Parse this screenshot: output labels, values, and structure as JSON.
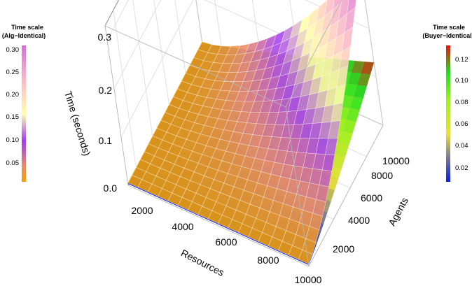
{
  "chart_data": {
    "type": "surface3d",
    "xlabel": "Resources",
    "ylabel": "Agents",
    "zlabel": "Time (seconds)",
    "x_ticks": [
      "2000",
      "4000",
      "6000",
      "8000",
      "10000"
    ],
    "y_ticks": [
      "2000",
      "4000",
      "6000",
      "8000",
      "10000"
    ],
    "z_ticks": [
      "0.0",
      "0.1",
      "0.2",
      "0.3"
    ],
    "xlim": [
      1000,
      10000
    ],
    "ylim": [
      1000,
      10000
    ],
    "zlim": [
      0,
      0.33
    ],
    "grid": true,
    "series": [
      {
        "name": "Alg-Identical",
        "colorbar": {
          "title_line1": "Time scale",
          "title_line2": "(Alg−Identical)",
          "ticks": [
            "0.30",
            "0.25",
            "0.20",
            "0.15",
            "0.10",
            "0.05"
          ],
          "range": [
            0.005,
            0.31
          ],
          "stops": [
            {
              "t": 0.0,
              "color": "#f5a300"
            },
            {
              "t": 0.12,
              "color": "#e98a6e"
            },
            {
              "t": 0.3,
              "color": "#a33cf2"
            },
            {
              "t": 0.5,
              "color": "#ffffa8"
            },
            {
              "t": 0.7,
              "color": "#ffc4c4"
            },
            {
              "t": 1.0,
              "color": "#d96fd9"
            }
          ]
        },
        "surface": {
          "x": [
            1000,
            2000,
            3000,
            4000,
            5000,
            6000,
            7000,
            8000,
            9000,
            10000
          ],
          "y": [
            1000,
            2000,
            3000,
            4000,
            5000,
            6000,
            7000,
            8000,
            9000,
            10000
          ],
          "z_max": 0.33,
          "x_exponent": 1.6,
          "y_exponent": 1.5,
          "base": 0.005
        }
      },
      {
        "name": "Buyer-Identical",
        "colorbar": {
          "title_line1": "Time scale",
          "title_line2": "(Buyer−Identical)",
          "ticks": [
            "0.12",
            "0.10",
            "0.08",
            "0.06",
            "0.04",
            "0.02"
          ],
          "range": [
            0.003,
            0.13
          ],
          "stops": [
            {
              "t": 0.0,
              "color": "#0a1fe0"
            },
            {
              "t": 0.18,
              "color": "#7a7a90"
            },
            {
              "t": 0.35,
              "color": "#e8e03a"
            },
            {
              "t": 0.6,
              "color": "#a0f020"
            },
            {
              "t": 0.8,
              "color": "#22e022"
            },
            {
              "t": 1.0,
              "color": "#e81010"
            }
          ]
        },
        "surface": {
          "x": [
            1000,
            2000,
            3000,
            4000,
            5000,
            6000,
            7000,
            8000,
            9000,
            10000
          ],
          "y": [
            1000,
            2000,
            3000,
            4000,
            5000,
            6000,
            7000,
            8000,
            9000,
            10000
          ],
          "z_max": 0.13,
          "x_exponent": 1.1,
          "y_exponent": 1.2,
          "base": 0.003
        }
      }
    ]
  }
}
